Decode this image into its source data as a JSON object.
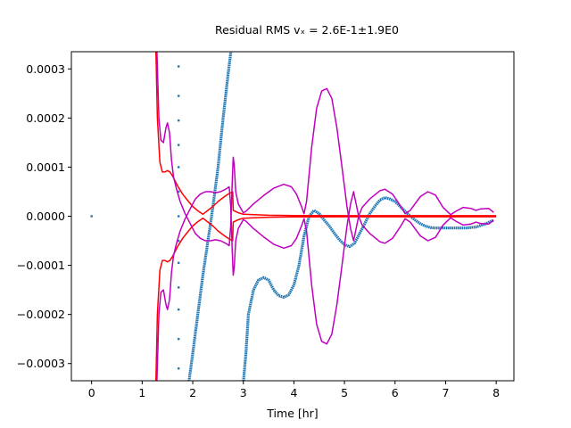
{
  "chart_data": {
    "type": "line",
    "title": "Residual RMS vₓ = 2.6E-1±1.9E0",
    "xlabel": "Time [hr]",
    "ylabel": "",
    "xlim": [
      -0.4,
      8.35
    ],
    "ylim": [
      -0.000335,
      0.000335
    ],
    "x_ticks": [
      0,
      1,
      2,
      3,
      4,
      5,
      6,
      7,
      8
    ],
    "x_tick_labels": [
      "0",
      "1",
      "2",
      "3",
      "4",
      "5",
      "6",
      "7",
      "8"
    ],
    "y_ticks": [
      -0.0003,
      -0.0002,
      -0.0001,
      0.0,
      0.0001,
      0.0002,
      0.0003
    ],
    "y_tick_labels": [
      "−0.0003",
      "−0.0002",
      "−0.0001",
      "0.0000",
      "0.0001",
      "0.0002",
      "0.0003"
    ],
    "grid": false,
    "colors": {
      "residuals": "#1f77b4",
      "sigma_inner": "#ff0000",
      "sigma_outer": "#bf00bf"
    },
    "series": [
      {
        "kind": "scatter",
        "color": "#1f77b4",
        "points": [
          [
            0.0,
            0.0
          ],
          [
            1.72,
            0.000305
          ],
          [
            1.72,
            0.000245
          ],
          [
            1.72,
            0.000195
          ],
          [
            1.72,
            0.000145
          ],
          [
            1.72,
            0.0001
          ],
          [
            1.72,
            5e-05
          ],
          [
            1.72,
            0.0
          ],
          [
            1.72,
            -5e-05
          ],
          [
            1.72,
            -9.5e-05
          ],
          [
            1.72,
            -0.000145
          ],
          [
            1.72,
            -0.00019
          ],
          [
            1.72,
            -0.00025
          ],
          [
            1.72,
            -0.00031
          ]
        ]
      },
      {
        "kind": "dense-points",
        "color": "#1f77b4",
        "points": [
          [
            1.92,
            -0.00034
          ],
          [
            2.0,
            -0.00028
          ],
          [
            2.1,
            -0.0002
          ],
          [
            2.2,
            -0.00012
          ],
          [
            2.3,
            -5e-05
          ],
          [
            2.4,
            2e-05
          ],
          [
            2.5,
            0.0001
          ],
          [
            2.6,
            0.0002
          ],
          [
            2.7,
            0.00029
          ],
          [
            2.76,
            0.00034
          ]
        ]
      },
      {
        "kind": "dense-points",
        "color": "#1f77b4",
        "points": [
          [
            3.0,
            -0.00034
          ],
          [
            3.05,
            -0.00028
          ],
          [
            3.1,
            -0.0002
          ],
          [
            3.2,
            -0.00015
          ],
          [
            3.3,
            -0.00013
          ],
          [
            3.4,
            -0.000125
          ],
          [
            3.5,
            -0.00013
          ],
          [
            3.6,
            -0.00015
          ],
          [
            3.7,
            -0.000162
          ],
          [
            3.8,
            -0.000165
          ],
          [
            3.9,
            -0.00016
          ],
          [
            4.0,
            -0.00014
          ],
          [
            4.1,
            -0.0001
          ],
          [
            4.2,
            -4e-05
          ],
          [
            4.3,
            0.0
          ],
          [
            4.4,
            1.2e-05
          ],
          [
            4.5,
            5e-06
          ],
          [
            4.6,
            -8e-06
          ],
          [
            4.7,
            -2e-05
          ],
          [
            4.8,
            -3.5e-05
          ],
          [
            4.9,
            -4.8e-05
          ],
          [
            5.0,
            -5.8e-05
          ],
          [
            5.1,
            -6.2e-05
          ],
          [
            5.2,
            -5.5e-05
          ],
          [
            5.3,
            -3.5e-05
          ],
          [
            5.4,
            -1.5e-05
          ],
          [
            5.5,
            5e-06
          ],
          [
            5.6,
            2e-05
          ],
          [
            5.7,
            3.3e-05
          ],
          [
            5.8,
            3.8e-05
          ],
          [
            5.9,
            3.5e-05
          ],
          [
            6.0,
            3e-05
          ],
          [
            6.1,
            2e-05
          ],
          [
            6.2,
            1e-05
          ],
          [
            6.3,
            0.0
          ],
          [
            6.4,
            -8e-06
          ],
          [
            6.5,
            -1.5e-05
          ],
          [
            6.6,
            -2e-05
          ],
          [
            6.7,
            -2.3e-05
          ],
          [
            6.8,
            -2.4e-05
          ],
          [
            6.9,
            -2.4e-05
          ],
          [
            7.0,
            -2.4e-05
          ],
          [
            7.2,
            -2.4e-05
          ],
          [
            7.4,
            -2.4e-05
          ],
          [
            7.6,
            -2.2e-05
          ],
          [
            7.8,
            -1.5e-05
          ],
          [
            7.95,
            -8e-06
          ]
        ]
      },
      {
        "kind": "line",
        "color": "#ff0000",
        "points": [
          [
            1.27,
            0.00034
          ],
          [
            1.3,
            0.0002
          ],
          [
            1.35,
            0.00011
          ],
          [
            1.4,
            9e-05
          ],
          [
            1.45,
            9e-05
          ],
          [
            1.5,
            9.3e-05
          ],
          [
            1.55,
            9e-05
          ],
          [
            1.6,
            8.2e-05
          ],
          [
            1.7,
            6.2e-05
          ],
          [
            1.8,
            4.5e-05
          ],
          [
            1.9,
            3.2e-05
          ],
          [
            2.0,
            2e-05
          ],
          [
            2.1,
            1.1e-05
          ],
          [
            2.2,
            4e-06
          ],
          [
            2.3,
            1.2e-05
          ],
          [
            2.4,
            2e-05
          ],
          [
            2.5,
            3e-05
          ],
          [
            2.6,
            3.8e-05
          ],
          [
            2.7,
            4.5e-05
          ],
          [
            2.79,
            5e-05
          ],
          [
            2.8,
            1.2e-05
          ],
          [
            2.9,
            7e-06
          ],
          [
            3.0,
            4e-06
          ],
          [
            3.5,
            2e-06
          ],
          [
            4.0,
            1.5e-06
          ],
          [
            5.0,
            1e-06
          ],
          [
            6.0,
            1e-06
          ],
          [
            7.0,
            1e-06
          ],
          [
            8.0,
            1e-06
          ]
        ]
      },
      {
        "kind": "line",
        "color": "#ff0000",
        "points": [
          [
            1.27,
            -0.00034
          ],
          [
            1.3,
            -0.0002
          ],
          [
            1.35,
            -0.00011
          ],
          [
            1.4,
            -9e-05
          ],
          [
            1.45,
            -9e-05
          ],
          [
            1.5,
            -9.3e-05
          ],
          [
            1.55,
            -9e-05
          ],
          [
            1.6,
            -8.2e-05
          ],
          [
            1.7,
            -6.2e-05
          ],
          [
            1.8,
            -4.5e-05
          ],
          [
            1.9,
            -3.2e-05
          ],
          [
            2.0,
            -2e-05
          ],
          [
            2.1,
            -1.1e-05
          ],
          [
            2.2,
            -4e-06
          ],
          [
            2.3,
            -1.2e-05
          ],
          [
            2.4,
            -2e-05
          ],
          [
            2.5,
            -3e-05
          ],
          [
            2.6,
            -3.8e-05
          ],
          [
            2.7,
            -4.5e-05
          ],
          [
            2.79,
            -5e-05
          ],
          [
            2.8,
            -1.2e-05
          ],
          [
            2.9,
            -7e-06
          ],
          [
            3.0,
            -4e-06
          ],
          [
            3.5,
            -2e-06
          ],
          [
            4.0,
            -1.5e-06
          ],
          [
            5.0,
            -1e-06
          ],
          [
            6.0,
            -1e-06
          ],
          [
            7.0,
            -1e-06
          ],
          [
            8.0,
            -1e-06
          ]
        ]
      },
      {
        "kind": "line",
        "color": "#bf00bf",
        "points": [
          [
            1.29,
            0.00034
          ],
          [
            1.33,
            0.0002
          ],
          [
            1.37,
            0.000155
          ],
          [
            1.42,
            0.00015
          ],
          [
            1.47,
            0.00018
          ],
          [
            1.5,
            0.00019
          ],
          [
            1.54,
            0.00017
          ],
          [
            1.58,
            0.000115
          ],
          [
            1.62,
            8e-05
          ],
          [
            1.68,
            5.5e-05
          ],
          [
            1.75,
            3e-05
          ],
          [
            1.85,
            5e-06
          ],
          [
            1.95,
            -1.5e-05
          ],
          [
            2.05,
            -3.5e-05
          ],
          [
            2.15,
            -4.5e-05
          ],
          [
            2.25,
            -5e-05
          ],
          [
            2.35,
            -5e-05
          ],
          [
            2.45,
            -4.8e-05
          ],
          [
            2.55,
            -5e-05
          ],
          [
            2.65,
            -5.5e-05
          ],
          [
            2.72,
            -6e-05
          ],
          [
            2.75,
            -2e-05
          ],
          [
            2.78,
            7e-05
          ],
          [
            2.8,
            0.00012
          ],
          [
            2.82,
            0.000105
          ],
          [
            2.85,
            5e-05
          ],
          [
            2.9,
            2.5e-05
          ],
          [
            3.0,
            7e-06
          ],
          [
            3.05,
            1e-05
          ],
          [
            3.2,
            2.5e-05
          ],
          [
            3.4,
            4.2e-05
          ],
          [
            3.6,
            5.7e-05
          ],
          [
            3.8,
            6.5e-05
          ],
          [
            3.95,
            6e-05
          ],
          [
            4.05,
            4.5e-05
          ],
          [
            4.15,
            2e-05
          ],
          [
            4.2,
            5e-06
          ],
          [
            4.25,
            3e-05
          ],
          [
            4.35,
            0.00014
          ],
          [
            4.45,
            0.00022
          ],
          [
            4.55,
            0.000255
          ],
          [
            4.65,
            0.00026
          ],
          [
            4.75,
            0.00024
          ],
          [
            4.85,
            0.00018
          ],
          [
            4.95,
            0.0001
          ],
          [
            5.05,
            2e-05
          ],
          [
            5.12,
            -2.5e-05
          ],
          [
            5.18,
            -5e-05
          ],
          [
            5.22,
            -3e-05
          ],
          [
            5.28,
            0.0
          ],
          [
            5.35,
            1.8e-05
          ],
          [
            5.5,
            3.5e-05
          ],
          [
            5.7,
            5.2e-05
          ],
          [
            5.8,
            5.5e-05
          ],
          [
            5.95,
            4.5e-05
          ],
          [
            6.1,
            2.2e-05
          ],
          [
            6.2,
            5e-06
          ],
          [
            6.3,
            1.2e-05
          ],
          [
            6.5,
            4e-05
          ],
          [
            6.65,
            5e-05
          ],
          [
            6.8,
            4.3e-05
          ],
          [
            6.95,
            1.8e-05
          ],
          [
            7.1,
            3e-06
          ],
          [
            7.2,
            1e-05
          ],
          [
            7.35,
            1.8e-05
          ],
          [
            7.5,
            1.6e-05
          ],
          [
            7.6,
            1.2e-05
          ],
          [
            7.7,
            1.5e-05
          ],
          [
            7.85,
            1.6e-05
          ],
          [
            7.95,
            8e-06
          ]
        ]
      },
      {
        "kind": "line",
        "color": "#bf00bf",
        "points": [
          [
            1.29,
            -0.00034
          ],
          [
            1.33,
            -0.0002
          ],
          [
            1.37,
            -0.000155
          ],
          [
            1.42,
            -0.00015
          ],
          [
            1.47,
            -0.00018
          ],
          [
            1.5,
            -0.00019
          ],
          [
            1.54,
            -0.00017
          ],
          [
            1.58,
            -0.000115
          ],
          [
            1.62,
            -8e-05
          ],
          [
            1.68,
            -5.5e-05
          ],
          [
            1.75,
            -3e-05
          ],
          [
            1.85,
            -5e-06
          ],
          [
            1.95,
            1.5e-05
          ],
          [
            2.05,
            3.5e-05
          ],
          [
            2.15,
            4.5e-05
          ],
          [
            2.25,
            5e-05
          ],
          [
            2.35,
            5e-05
          ],
          [
            2.45,
            4.8e-05
          ],
          [
            2.55,
            5e-05
          ],
          [
            2.65,
            5.5e-05
          ],
          [
            2.72,
            6e-05
          ],
          [
            2.75,
            2e-05
          ],
          [
            2.78,
            -7e-05
          ],
          [
            2.8,
            -0.00012
          ],
          [
            2.82,
            -0.000105
          ],
          [
            2.85,
            -5e-05
          ],
          [
            2.9,
            -2.5e-05
          ],
          [
            3.0,
            -7e-06
          ],
          [
            3.05,
            -1e-05
          ],
          [
            3.2,
            -2.5e-05
          ],
          [
            3.4,
            -4.2e-05
          ],
          [
            3.6,
            -5.7e-05
          ],
          [
            3.8,
            -6.5e-05
          ],
          [
            3.95,
            -6e-05
          ],
          [
            4.05,
            -4.5e-05
          ],
          [
            4.15,
            -2e-05
          ],
          [
            4.2,
            -5e-06
          ],
          [
            4.25,
            -3e-05
          ],
          [
            4.35,
            -0.00014
          ],
          [
            4.45,
            -0.00022
          ],
          [
            4.55,
            -0.000255
          ],
          [
            4.65,
            -0.00026
          ],
          [
            4.75,
            -0.00024
          ],
          [
            4.85,
            -0.00018
          ],
          [
            4.95,
            -0.0001
          ],
          [
            5.05,
            -2e-05
          ],
          [
            5.12,
            2.5e-05
          ],
          [
            5.18,
            5e-05
          ],
          [
            5.22,
            3e-05
          ],
          [
            5.28,
            0.0
          ],
          [
            5.35,
            -1.8e-05
          ],
          [
            5.5,
            -3.5e-05
          ],
          [
            5.7,
            -5.2e-05
          ],
          [
            5.8,
            -5.5e-05
          ],
          [
            5.95,
            -4.5e-05
          ],
          [
            6.1,
            -2.2e-05
          ],
          [
            6.2,
            -5e-06
          ],
          [
            6.3,
            -1.2e-05
          ],
          [
            6.5,
            -4e-05
          ],
          [
            6.65,
            -5e-05
          ],
          [
            6.8,
            -4.3e-05
          ],
          [
            6.95,
            -1.8e-05
          ],
          [
            7.1,
            -3e-06
          ],
          [
            7.2,
            -1e-05
          ],
          [
            7.35,
            -1.8e-05
          ],
          [
            7.5,
            -1.6e-05
          ],
          [
            7.6,
            -1.2e-05
          ],
          [
            7.7,
            -1.5e-05
          ],
          [
            7.85,
            -1.6e-05
          ],
          [
            7.95,
            -8e-06
          ]
        ]
      }
    ]
  }
}
